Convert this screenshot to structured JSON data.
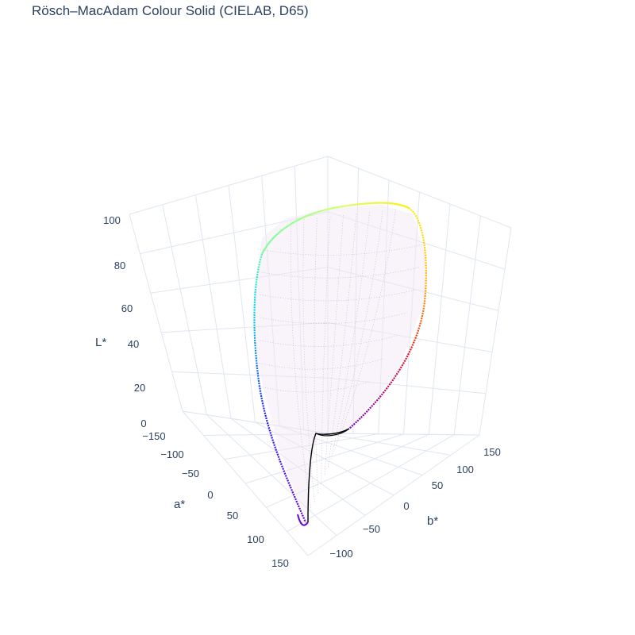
{
  "chart_data": {
    "type": "scatter3d",
    "title": "Rösch–MacAdam Colour Solid (CIELAB, D65)",
    "axes": {
      "x": {
        "label": "a*",
        "ticks": [
          -150,
          -100,
          -50,
          0,
          50,
          100,
          150
        ]
      },
      "y": {
        "label": "b*",
        "ticks": [
          -100,
          -50,
          0,
          50,
          100,
          150
        ]
      },
      "z": {
        "label": "L*",
        "ticks": [
          0,
          20,
          40,
          60,
          80,
          100
        ]
      }
    },
    "boundary_colors": {
      "yellow": "#ffee00",
      "orange": "#ffa500",
      "red": "#e8111d",
      "green": "#7dff9a",
      "cyan": "#00d8e8",
      "blue": "#2222ff",
      "violet": "#6a00d8",
      "black": "#000000",
      "interior": "#c9a9d9"
    }
  }
}
